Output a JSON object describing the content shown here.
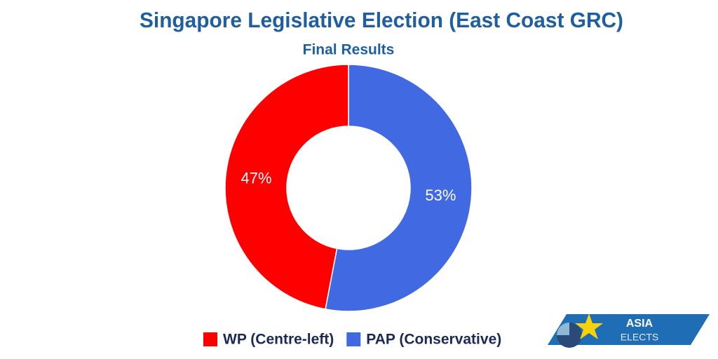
{
  "chart_data": {
    "type": "donut",
    "title": "Singapore Legislative Election (East Coast GRC)",
    "subtitle": "Final Results",
    "categories": [
      "WP (Centre-left)",
      "PAP (Conservative)"
    ],
    "values": [
      47,
      53
    ],
    "value_labels": [
      "47%",
      "53%"
    ],
    "colors": [
      "#ff0000",
      "#4169e1"
    ]
  },
  "logo": {
    "line1": "ASIA",
    "line2": "ELECTS"
  }
}
